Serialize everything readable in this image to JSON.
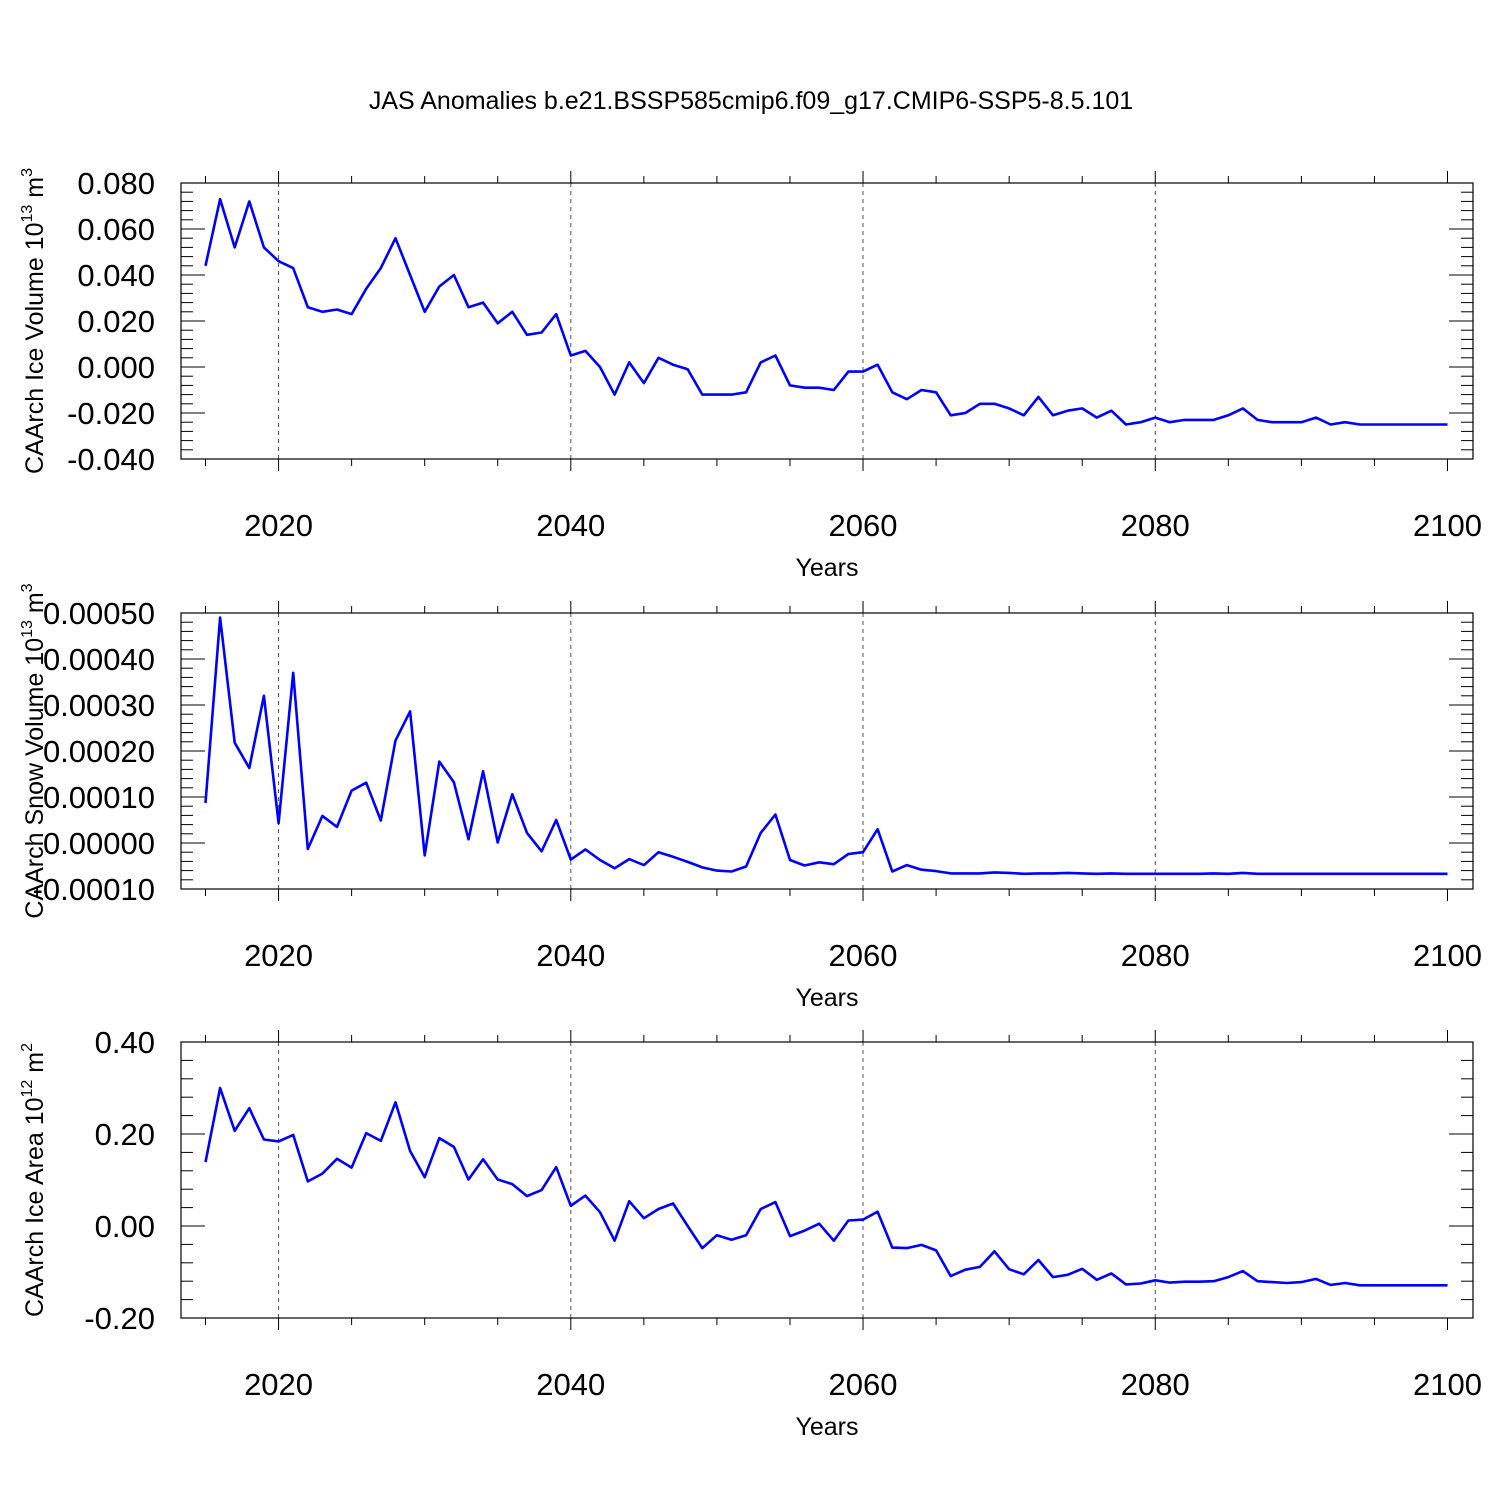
{
  "title": "JAS Anomalies b.e21.BSSP585cmip6.f09_g17.CMIP6-SSP5-8.5.101",
  "chart_data": [
    {
      "type": "line",
      "xlabel": "Years",
      "ylabel": "CAArch Ice Volume 10",
      "ylabel_sup1": "13",
      "ylabel_mid": " m",
      "ylabel_sup2": "3",
      "xlim": [
        2015,
        2100
      ],
      "ylim": [
        -0.04,
        0.08
      ],
      "xticks": [
        "2020",
        "2040",
        "2060",
        "2080",
        "2100"
      ],
      "yticks": [
        "0.080",
        "0.060",
        "0.040",
        "0.020",
        "0.000",
        "-0.020",
        "-0.040"
      ],
      "series_color": "#0000ff",
      "x": [
        2015,
        2016,
        2017,
        2018,
        2019,
        2020,
        2021,
        2022,
        2023,
        2024,
        2025,
        2026,
        2027,
        2028,
        2029,
        2030,
        2031,
        2032,
        2033,
        2034,
        2035,
        2036,
        2037,
        2038,
        2039,
        2040,
        2041,
        2042,
        2043,
        2044,
        2045,
        2046,
        2047,
        2048,
        2049,
        2050,
        2051,
        2052,
        2053,
        2054,
        2055,
        2056,
        2057,
        2058,
        2059,
        2060,
        2061,
        2062,
        2063,
        2064,
        2065,
        2066,
        2067,
        2068,
        2069,
        2070,
        2071,
        2072,
        2073,
        2074,
        2075,
        2076,
        2077,
        2078,
        2079,
        2080,
        2081,
        2082,
        2083,
        2084,
        2085,
        2086,
        2087,
        2088,
        2089,
        2090,
        2091,
        2092,
        2093,
        2094,
        2095,
        2096,
        2097,
        2098,
        2099,
        2100
      ],
      "values": [
        0.044,
        0.073,
        0.052,
        0.072,
        0.052,
        0.046,
        0.043,
        0.026,
        0.024,
        0.025,
        0.023,
        0.034,
        0.043,
        0.056,
        0.04,
        0.024,
        0.035,
        0.04,
        0.026,
        0.028,
        0.019,
        0.024,
        0.014,
        0.015,
        0.023,
        0.005,
        0.007,
        0.0,
        -0.012,
        0.002,
        -0.007,
        0.004,
        0.001,
        -0.001,
        -0.012,
        -0.012,
        -0.012,
        -0.011,
        0.002,
        0.005,
        -0.008,
        -0.009,
        -0.009,
        -0.01,
        -0.002,
        -0.002,
        0.001,
        -0.011,
        -0.014,
        -0.01,
        -0.011,
        -0.021,
        -0.02,
        -0.016,
        -0.016,
        -0.018,
        -0.021,
        -0.013,
        -0.021,
        -0.019,
        -0.018,
        -0.022,
        -0.019,
        -0.025,
        -0.024,
        -0.022,
        -0.024,
        -0.023,
        -0.023,
        -0.023,
        -0.021,
        -0.018,
        -0.023,
        -0.024,
        -0.024,
        -0.024,
        -0.022,
        -0.025,
        -0.024,
        -0.025,
        -0.025,
        -0.025,
        -0.025,
        -0.025,
        -0.025,
        -0.025
      ]
    },
    {
      "type": "line",
      "xlabel": "Years",
      "ylabel": "CAArch Snow Volume 10",
      "ylabel_sup1": "13",
      "ylabel_mid": " m",
      "ylabel_sup2": "3",
      "xlim": [
        2015,
        2100
      ],
      "ylim": [
        -0.0001,
        0.0005
      ],
      "xticks": [
        "2020",
        "2040",
        "2060",
        "2080",
        "2100"
      ],
      "yticks": [
        "0.00050",
        "0.00040",
        "0.00030",
        "0.00020",
        "0.00010",
        "0.00000",
        "-0.00010"
      ],
      "series_color": "#0000ff",
      "x": [
        2015,
        2016,
        2017,
        2018,
        2019,
        2020,
        2021,
        2022,
        2023,
        2024,
        2025,
        2026,
        2027,
        2028,
        2029,
        2030,
        2031,
        2032,
        2033,
        2034,
        2035,
        2036,
        2037,
        2038,
        2039,
        2040,
        2041,
        2042,
        2043,
        2044,
        2045,
        2046,
        2047,
        2048,
        2049,
        2050,
        2051,
        2052,
        2053,
        2054,
        2055,
        2056,
        2057,
        2058,
        2059,
        2060,
        2061,
        2062,
        2063,
        2064,
        2065,
        2066,
        2067,
        2068,
        2069,
        2070,
        2071,
        2072,
        2073,
        2074,
        2075,
        2076,
        2077,
        2078,
        2079,
        2080,
        2081,
        2082,
        2083,
        2084,
        2085,
        2086,
        2087,
        2088,
        2089,
        2090,
        2091,
        2092,
        2093,
        2094,
        2095,
        2096,
        2097,
        2098,
        2099,
        2100
      ],
      "values": [
        8.7e-05,
        0.00049,
        0.000218,
        0.000163,
        0.00032,
        4.3e-05,
        0.00037,
        -1.3e-05,
        5.9e-05,
        3.5e-05,
        0.000114,
        0.000131,
        4.9e-05,
        0.000223,
        0.000286,
        -2.7e-05,
        0.000177,
        0.000132,
        8e-06,
        0.000156,
        1e-06,
        0.000106,
        2.2e-05,
        -1.8e-05,
        5e-05,
        -3.6e-05,
        -1.4e-05,
        -3.7e-05,
        -5.5e-05,
        -3.5e-05,
        -4.8e-05,
        -2e-05,
        -3e-05,
        -4.1e-05,
        -5.3e-05,
        -6e-05,
        -6.2e-05,
        -5.1e-05,
        2.2e-05,
        6.2e-05,
        -3.7e-05,
        -4.9e-05,
        -4.2e-05,
        -4.6e-05,
        -2.4e-05,
        -2e-05,
        3e-05,
        -6.2e-05,
        -4.8e-05,
        -5.8e-05,
        -6.1e-05,
        -6.6e-05,
        -6.6e-05,
        -6.6e-05,
        -6.4e-05,
        -6.5e-05,
        -6.7e-05,
        -6.6e-05,
        -6.6e-05,
        -6.5e-05,
        -6.6e-05,
        -6.7e-05,
        -6.6e-05,
        -6.7e-05,
        -6.7e-05,
        -6.7e-05,
        -6.7e-05,
        -6.7e-05,
        -6.7e-05,
        -6.6e-05,
        -6.7e-05,
        -6.5e-05,
        -6.7e-05,
        -6.7e-05,
        -6.7e-05,
        -6.7e-05,
        -6.7e-05,
        -6.7e-05,
        -6.7e-05,
        -6.7e-05,
        -6.7e-05,
        -6.7e-05,
        -6.7e-05,
        -6.7e-05,
        -6.7e-05,
        -6.7e-05
      ]
    },
    {
      "type": "line",
      "xlabel": "Years",
      "ylabel": "CAArch Ice Area 10",
      "ylabel_sup1": "12",
      "ylabel_mid": " m",
      "ylabel_sup2": "2",
      "xlim": [
        2015,
        2100
      ],
      "ylim": [
        -0.2,
        0.4
      ],
      "xticks": [
        "2020",
        "2040",
        "2060",
        "2080",
        "2100"
      ],
      "yticks": [
        "0.40",
        "0.20",
        "0.00",
        "-0.20"
      ],
      "series_color": "#0000ff",
      "x": [
        2015,
        2016,
        2017,
        2018,
        2019,
        2020,
        2021,
        2022,
        2023,
        2024,
        2025,
        2026,
        2027,
        2028,
        2029,
        2030,
        2031,
        2032,
        2033,
        2034,
        2035,
        2036,
        2037,
        2038,
        2039,
        2040,
        2041,
        2042,
        2043,
        2044,
        2045,
        2046,
        2047,
        2048,
        2049,
        2050,
        2051,
        2052,
        2053,
        2054,
        2055,
        2056,
        2057,
        2058,
        2059,
        2060,
        2061,
        2062,
        2063,
        2064,
        2065,
        2066,
        2067,
        2068,
        2069,
        2070,
        2071,
        2072,
        2073,
        2074,
        2075,
        2076,
        2077,
        2078,
        2079,
        2080,
        2081,
        2082,
        2083,
        2084,
        2085,
        2086,
        2087,
        2088,
        2089,
        2090,
        2091,
        2092,
        2093,
        2094,
        2095,
        2096,
        2097,
        2098,
        2099,
        2100
      ],
      "values": [
        0.139,
        0.3,
        0.207,
        0.256,
        0.188,
        0.184,
        0.198,
        0.097,
        0.114,
        0.146,
        0.127,
        0.202,
        0.185,
        0.269,
        0.163,
        0.106,
        0.191,
        0.172,
        0.101,
        0.145,
        0.101,
        0.091,
        0.065,
        0.078,
        0.128,
        0.044,
        0.066,
        0.03,
        -0.032,
        0.054,
        0.017,
        0.037,
        0.049,
        0.0,
        -0.048,
        -0.02,
        -0.03,
        -0.02,
        0.037,
        0.052,
        -0.022,
        -0.01,
        0.005,
        -0.032,
        0.012,
        0.014,
        0.031,
        -0.047,
        -0.048,
        -0.041,
        -0.053,
        -0.109,
        -0.095,
        -0.089,
        -0.055,
        -0.094,
        -0.105,
        -0.074,
        -0.111,
        -0.106,
        -0.093,
        -0.117,
        -0.103,
        -0.127,
        -0.125,
        -0.118,
        -0.123,
        -0.121,
        -0.121,
        -0.12,
        -0.111,
        -0.098,
        -0.12,
        -0.122,
        -0.124,
        -0.122,
        -0.115,
        -0.128,
        -0.124,
        -0.129,
        -0.129,
        -0.129,
        -0.129,
        -0.129,
        -0.129,
        -0.129
      ]
    }
  ]
}
